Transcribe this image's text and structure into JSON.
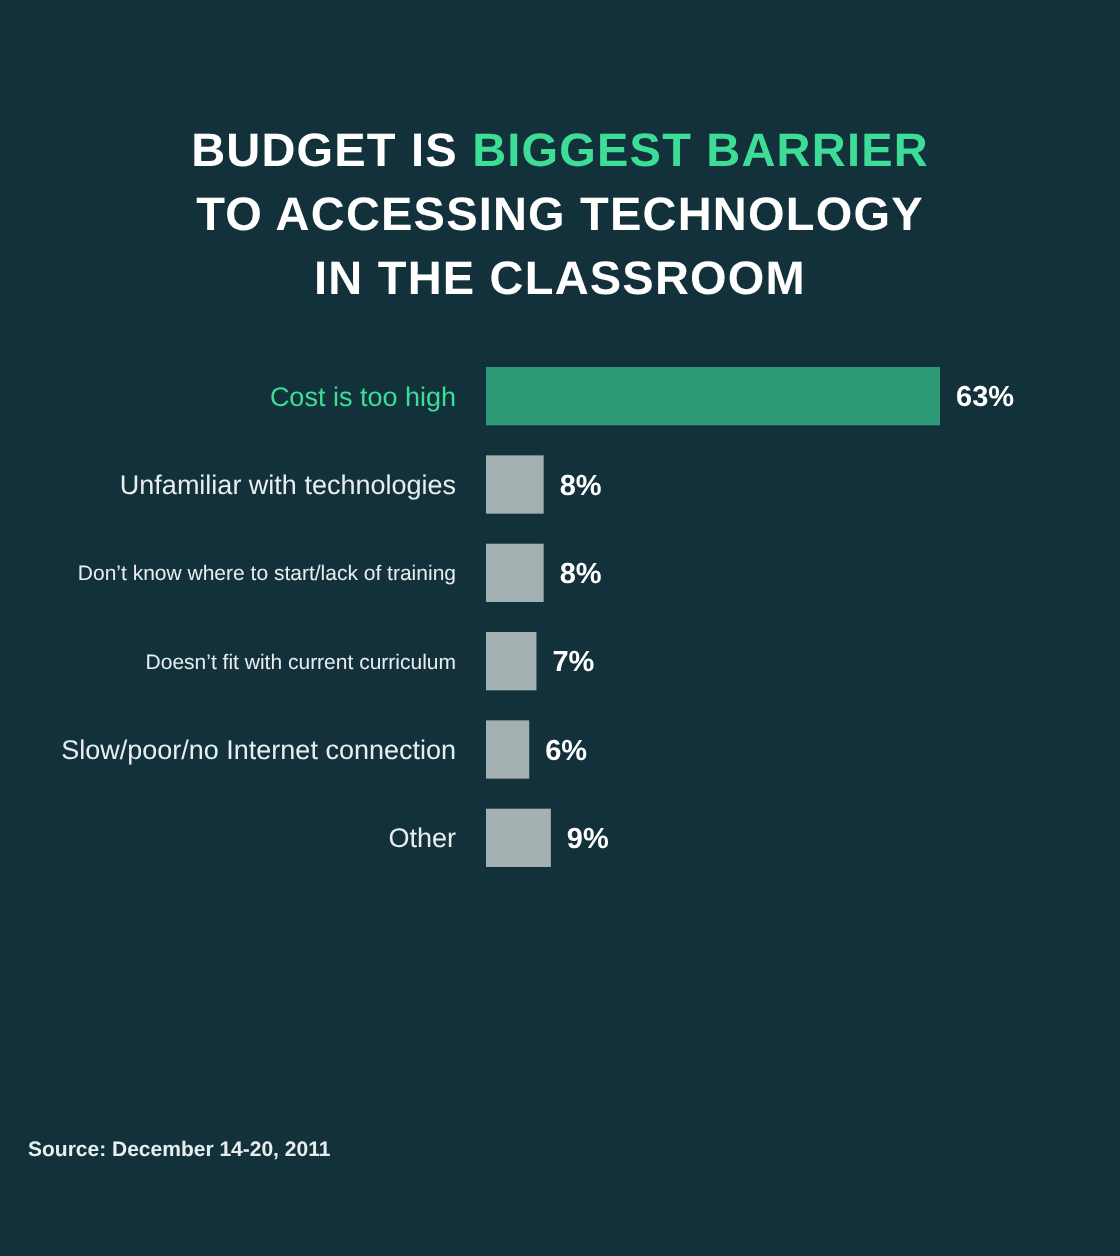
{
  "chart_data": {
    "type": "bar",
    "orientation": "horizontal",
    "title": "BUDGET IS BIGGEST BARRIER TO ACCESSING TECHNOLOGY IN THE CLASSROOM",
    "categories": [
      "Cost is too high",
      "Unfamiliar with technologies",
      "Don’t know where to start/lack of training",
      "Doesn’t fit with current curriculum",
      "Slow/poor/no Internet connection",
      "Other"
    ],
    "values": [
      63,
      8,
      8,
      7,
      6,
      9
    ],
    "colors": [
      "#2f9a78",
      "#a3b1b3",
      "#a3b1b3",
      "#a3b1b3",
      "#a3b1b3",
      "#a3b1b3"
    ],
    "value_labels": [
      "63%",
      "8%",
      "8%",
      "7%",
      "6%",
      "9%"
    ],
    "annotations": [
      "Source: December 14-20, 2011"
    ]
  }
}
